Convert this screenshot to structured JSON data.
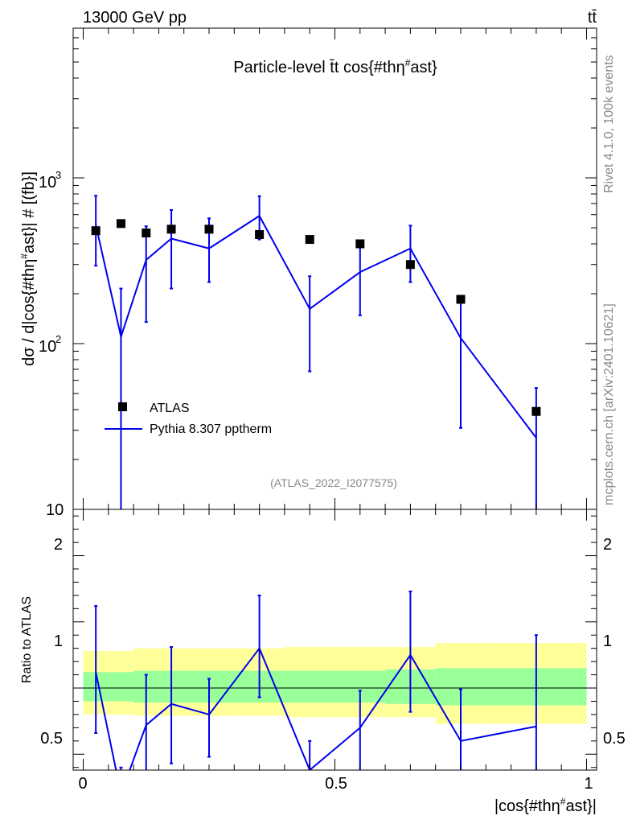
{
  "header": {
    "left": "13000 GeV pp",
    "right": "tt̄"
  },
  "side_labels": {
    "rivet": "Rivet 4.1.0,  100k events",
    "mcplots": "mcplots.cern.ch [arXiv:2401.10621]"
  },
  "colors": {
    "mc": "#0000ee",
    "data": "#000000",
    "band_inner": "#99ff99",
    "band_outer": "#ffff99"
  },
  "chart_data": [
    {
      "type": "scatter",
      "title": "Particle-level t̄t cos{#thη^{#}ast}",
      "title_main": "Particle-level t̄t cos{#thη",
      "title_sup": "#",
      "title_tail": "ast}",
      "ylabel": "dσ / d|cos{#thη#ast}| # [(fb}]",
      "ylabel_parts": {
        "a": "dσ / d|cos{#thη",
        "sup": "#",
        "b": "ast}| # [(fb}]"
      },
      "yscale": "log",
      "ylim": [
        10,
        8000
      ],
      "xlim": [
        -0.02,
        1.02
      ],
      "ytick_labels": [
        {
          "value": 1000,
          "base": "10",
          "exp": "3"
        },
        {
          "value": 100,
          "base": "10",
          "exp": "2"
        },
        {
          "value": 10,
          "base": "10",
          "exp": ""
        }
      ],
      "watermark": "(ATLAS_2022_I2077575)",
      "legend": {
        "position": "lower-left",
        "data_label": "ATLAS",
        "mc_label": "Pythia 8.307 pptherm"
      },
      "bins": [
        {
          "x": 0.025,
          "xlo": 0.0,
          "xhi": 0.05
        },
        {
          "x": 0.075,
          "xlo": 0.05,
          "xhi": 0.1
        },
        {
          "x": 0.125,
          "xlo": 0.1,
          "xhi": 0.15
        },
        {
          "x": 0.175,
          "xlo": 0.15,
          "xhi": 0.2
        },
        {
          "x": 0.25,
          "xlo": 0.2,
          "xhi": 0.3
        },
        {
          "x": 0.35,
          "xlo": 0.3,
          "xhi": 0.4
        },
        {
          "x": 0.45,
          "xlo": 0.4,
          "xhi": 0.5
        },
        {
          "x": 0.55,
          "xlo": 0.5,
          "xhi": 0.6
        },
        {
          "x": 0.65,
          "xlo": 0.6,
          "xhi": 0.7
        },
        {
          "x": 0.75,
          "xlo": 0.7,
          "xhi": 0.8
        },
        {
          "x": 0.9,
          "xlo": 0.8,
          "xhi": 1.0
        }
      ],
      "series": [
        {
          "name": "ATLAS",
          "values": [
            480,
            530,
            465,
            490,
            490,
            455,
            425,
            400,
            300,
            185,
            39
          ]
        },
        {
          "name": "Pythia 8.307 pptherm",
          "values": [
            520,
            110,
            320,
            430,
            375,
            590,
            162,
            270,
            375,
            108,
            27
          ],
          "err_hi": [
            780,
            215,
            510,
            640,
            570,
            775,
            255,
            390,
            515,
            185,
            54
          ],
          "err_lo": [
            295,
            5,
            135,
            215,
            235,
            425,
            68,
            148,
            235,
            31,
            5
          ]
        }
      ]
    },
    {
      "type": "line",
      "ylabel": "Ratio to ATLAS",
      "xlabel": "|cos{#thη^{#}ast}|",
      "xlabel_parts": {
        "a": "|cos{#thη",
        "sup": "#",
        "b": "ast}|"
      },
      "ylim": [
        0.38,
        2.35
      ],
      "xlim": [
        -0.02,
        1.02
      ],
      "ytick_labels": [
        "2",
        "1",
        "0.5"
      ],
      "xtick_labels": [
        "0",
        "0.5",
        "1"
      ],
      "ratio": {
        "values": [
          1.12,
          0.2,
          0.72,
          0.88,
          0.8,
          1.3,
          0.38,
          0.7,
          1.25,
          0.6,
          0.71
        ],
        "err_hi": [
          1.62,
          0.4,
          1.1,
          1.31,
          1.07,
          1.7,
          0.6,
          0.98,
          1.73,
          0.99,
          1.4
        ],
        "err_lo": [
          0.66,
          0.2,
          0.3,
          0.43,
          0.48,
          0.93,
          0.2,
          0.3,
          0.82,
          0.2,
          0.2
        ]
      },
      "band_inner": {
        "lo": [
          0.9,
          0.9,
          0.89,
          0.89,
          0.89,
          0.89,
          0.89,
          0.89,
          0.88,
          0.87,
          0.87
        ],
        "hi": [
          1.12,
          1.12,
          1.13,
          1.13,
          1.13,
          1.13,
          1.13,
          1.13,
          1.14,
          1.15,
          1.15
        ]
      },
      "band_outer": {
        "lo": [
          0.8,
          0.8,
          0.79,
          0.79,
          0.79,
          0.79,
          0.78,
          0.78,
          0.78,
          0.73,
          0.73
        ],
        "hi": [
          1.28,
          1.28,
          1.3,
          1.3,
          1.3,
          1.3,
          1.31,
          1.31,
          1.31,
          1.34,
          1.34
        ]
      }
    }
  ]
}
